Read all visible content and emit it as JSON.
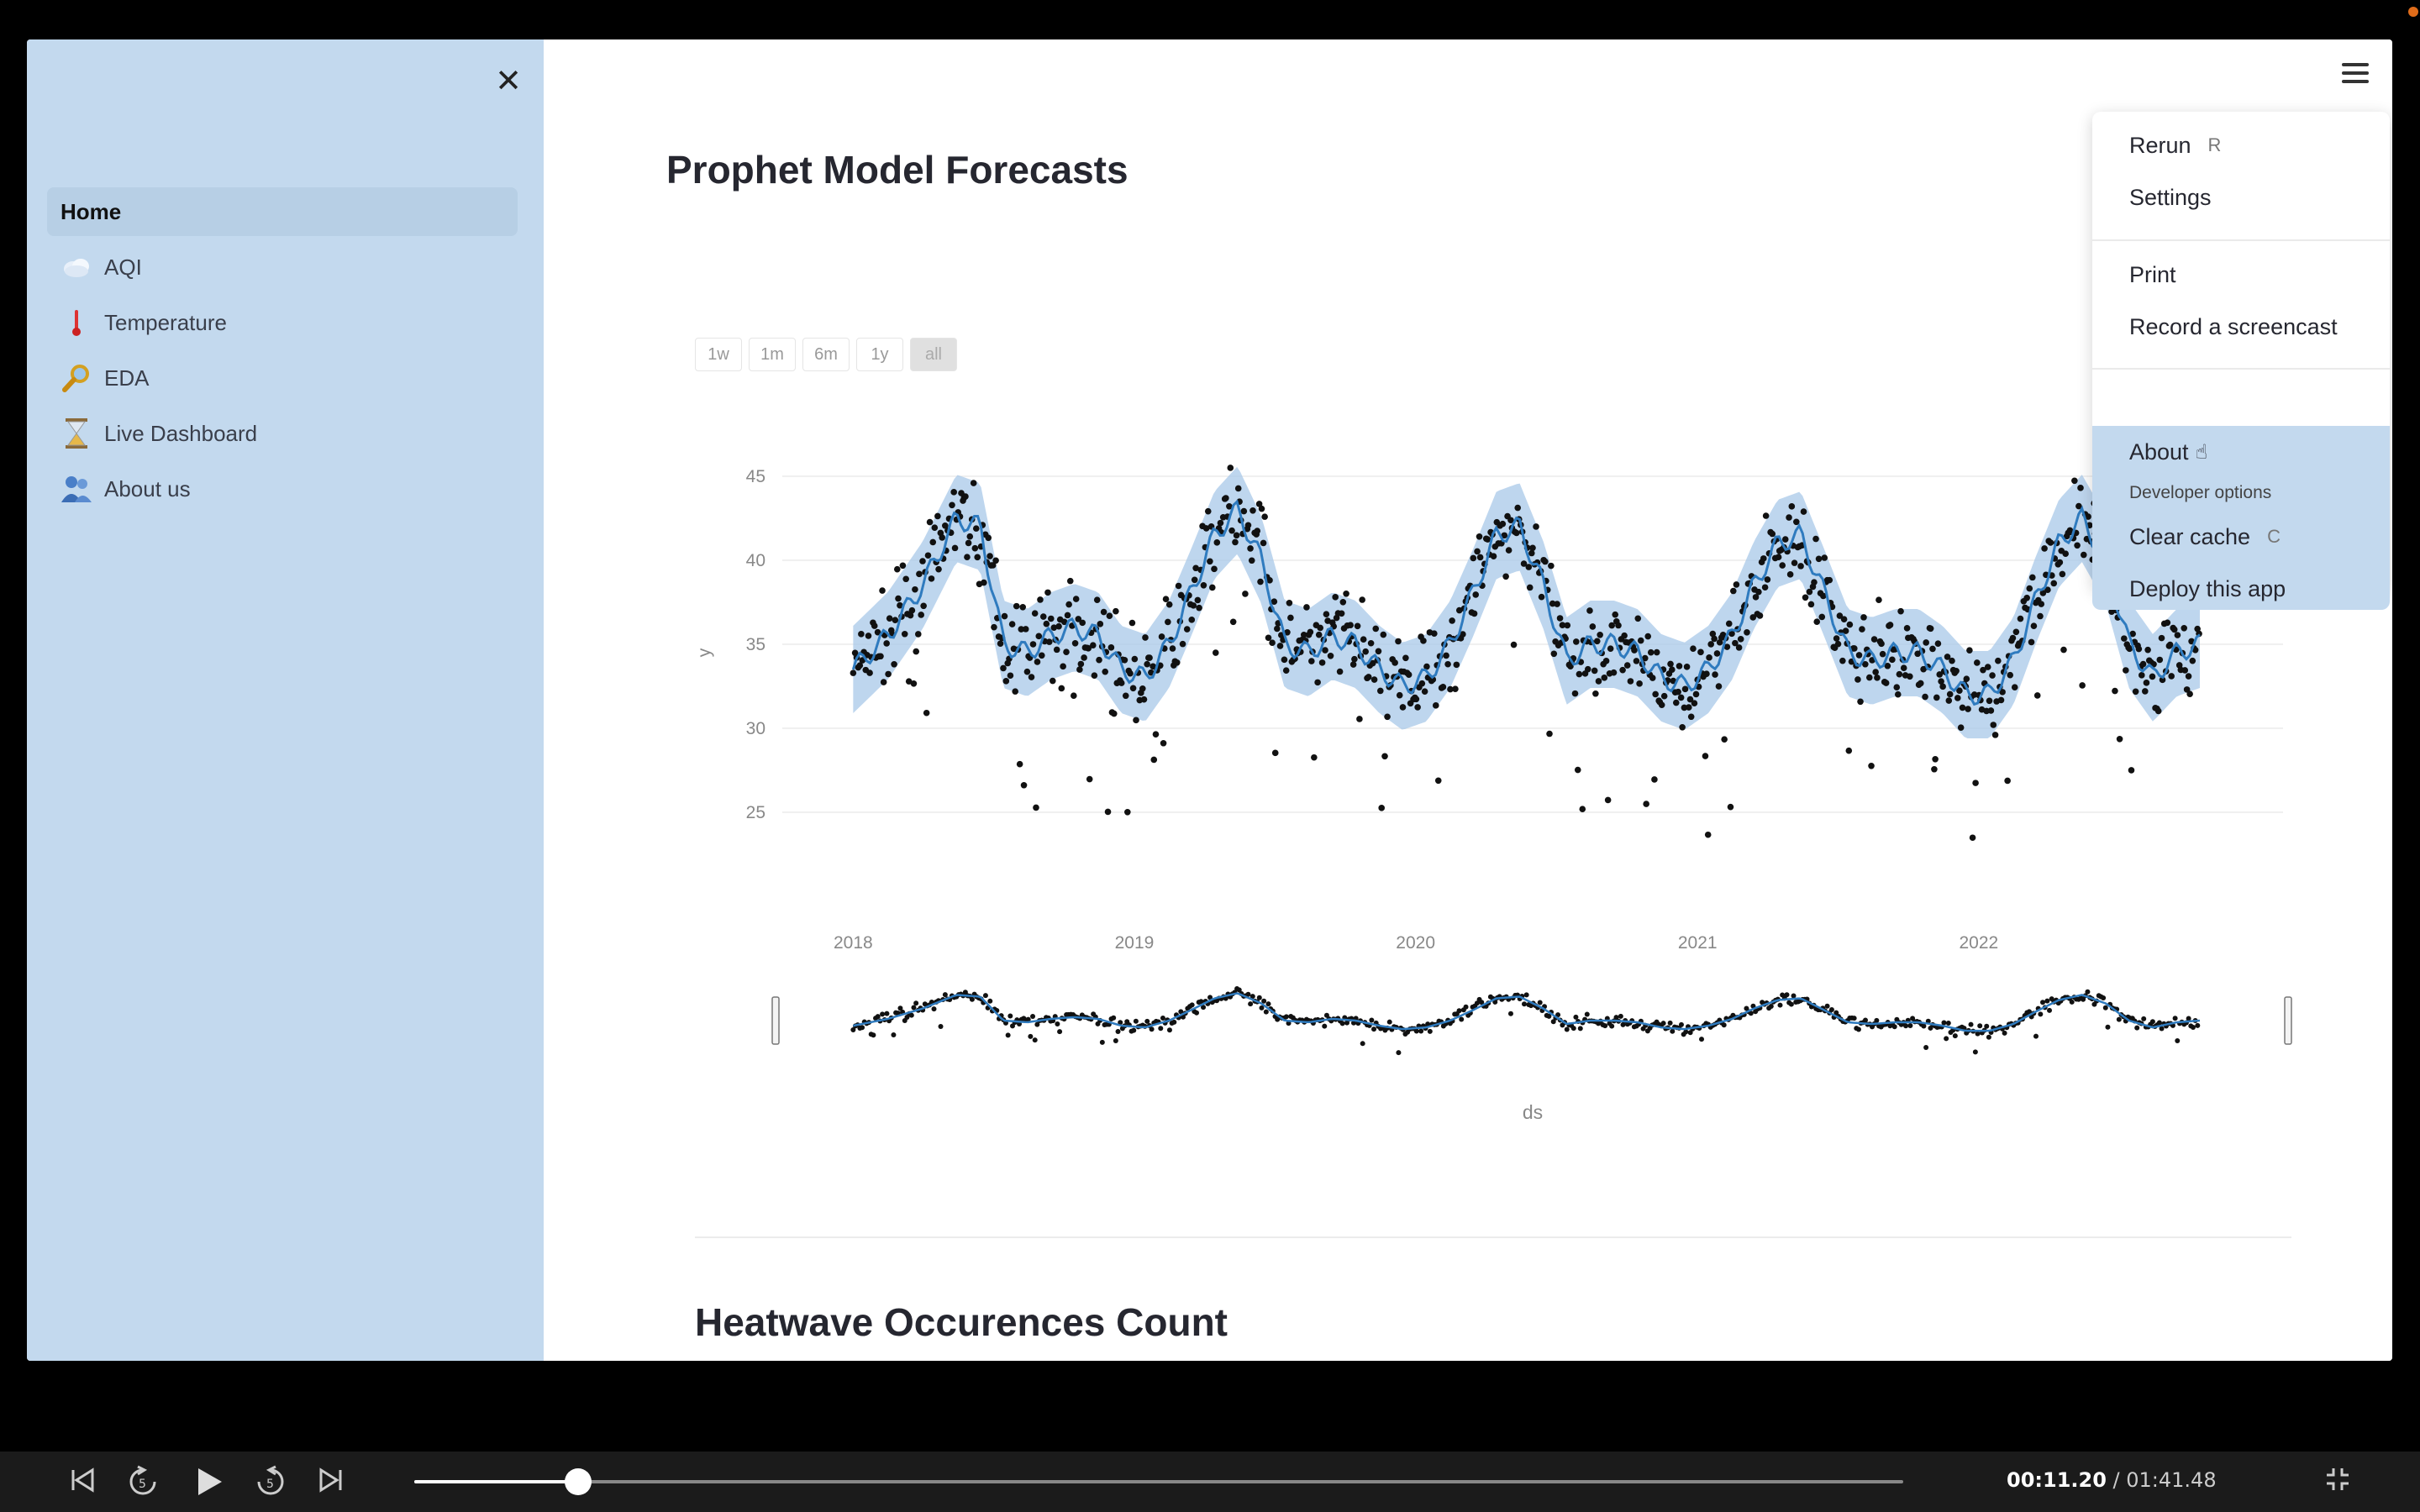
{
  "sidebar": {
    "close_icon": "close-icon",
    "items": [
      {
        "label": "Home",
        "icon": "",
        "active": true
      },
      {
        "label": "AQI",
        "icon": "cloud-icon"
      },
      {
        "label": "Temperature",
        "icon": "thermometer-icon"
      },
      {
        "label": "EDA",
        "icon": "magnifier-icon"
      },
      {
        "label": "Live Dashboard",
        "icon": "hourglass-icon"
      },
      {
        "label": "About us",
        "icon": "people-icon"
      }
    ]
  },
  "main": {
    "title": "Prophet Model Forecasts",
    "range_buttons": [
      "1w",
      "1m",
      "6m",
      "1y",
      "all"
    ],
    "active_range": "all",
    "section_title": "Heatwave Occurences Count"
  },
  "chart_data": {
    "type": "scatter",
    "title": "",
    "xlabel": "ds",
    "ylabel": "y",
    "x_ticks": [
      "2018",
      "2019",
      "2020",
      "2021",
      "2022"
    ],
    "y_ticks": [
      25,
      30,
      35,
      40,
      45
    ],
    "xlim": [
      "2017-10-01",
      "2023-01-31"
    ],
    "ylim": [
      21,
      48
    ],
    "series": [
      {
        "kind": "observed",
        "marker": "dot",
        "color": "#111111"
      },
      {
        "kind": "forecast",
        "line_color": "#2f7bbf",
        "band_color": "#a8c8e8"
      }
    ],
    "forecast_x": [
      "2018-01-01",
      "2018-02-15",
      "2018-04-01",
      "2018-05-15",
      "2018-06-15",
      "2018-07-15",
      "2018-08-15",
      "2018-09-15",
      "2018-10-15",
      "2018-11-15",
      "2018-12-15",
      "2019-01-15",
      "2019-02-15",
      "2019-03-15",
      "2019-04-15",
      "2019-05-15",
      "2019-06-15",
      "2019-07-15",
      "2019-08-15",
      "2019-09-15",
      "2019-10-15",
      "2019-11-15",
      "2019-12-15",
      "2020-01-15",
      "2020-02-15",
      "2020-03-15",
      "2020-04-15",
      "2020-05-15",
      "2020-06-15",
      "2020-07-15",
      "2020-08-15",
      "2020-09-15",
      "2020-10-15",
      "2020-11-15",
      "2020-12-15",
      "2021-01-15",
      "2021-02-15",
      "2021-03-15",
      "2021-04-15",
      "2021-05-15",
      "2021-06-15",
      "2021-07-15",
      "2021-08-15",
      "2021-09-15",
      "2021-10-15",
      "2021-11-15",
      "2021-12-15",
      "2022-01-15",
      "2022-02-15",
      "2022-03-15",
      "2022-04-15",
      "2022-05-15",
      "2022-06-15",
      "2022-07-15",
      "2022-08-15",
      "2022-09-15",
      "2022-10-15"
    ],
    "forecast_y": [
      33.5,
      35.5,
      38.5,
      42.5,
      42.0,
      35.0,
      34.5,
      35.5,
      36.0,
      35.5,
      33.5,
      33.0,
      35.0,
      38.0,
      41.5,
      43.0,
      40.0,
      35.0,
      34.5,
      35.5,
      35.0,
      33.5,
      32.5,
      33.0,
      35.0,
      38.0,
      41.5,
      42.0,
      38.5,
      34.0,
      35.0,
      35.0,
      34.5,
      33.0,
      32.5,
      33.5,
      35.5,
      38.5,
      41.0,
      41.5,
      38.0,
      34.5,
      34.0,
      34.5,
      34.5,
      33.5,
      32.0,
      32.0,
      34.0,
      37.5,
      41.0,
      42.5,
      40.0,
      35.0,
      33.0,
      34.5,
      35.0
    ],
    "band_halfwidth": 2.6,
    "observed_points_approx_count": 1700
  },
  "menu": {
    "items": [
      {
        "label": "Rerun",
        "shortcut": "R"
      },
      {
        "label": "Settings"
      },
      {
        "label": "Print"
      },
      {
        "label": "Record a screencast"
      },
      {
        "label": "About",
        "hovered": true
      }
    ],
    "dev_label": "Developer options",
    "dev_items": [
      {
        "label": "Clear cache",
        "shortcut": "C"
      },
      {
        "label": "Deploy this app"
      }
    ]
  },
  "player": {
    "current_time": "00:11.20",
    "separator": " / ",
    "total_time": "01:41.48",
    "progress": 0.11
  }
}
